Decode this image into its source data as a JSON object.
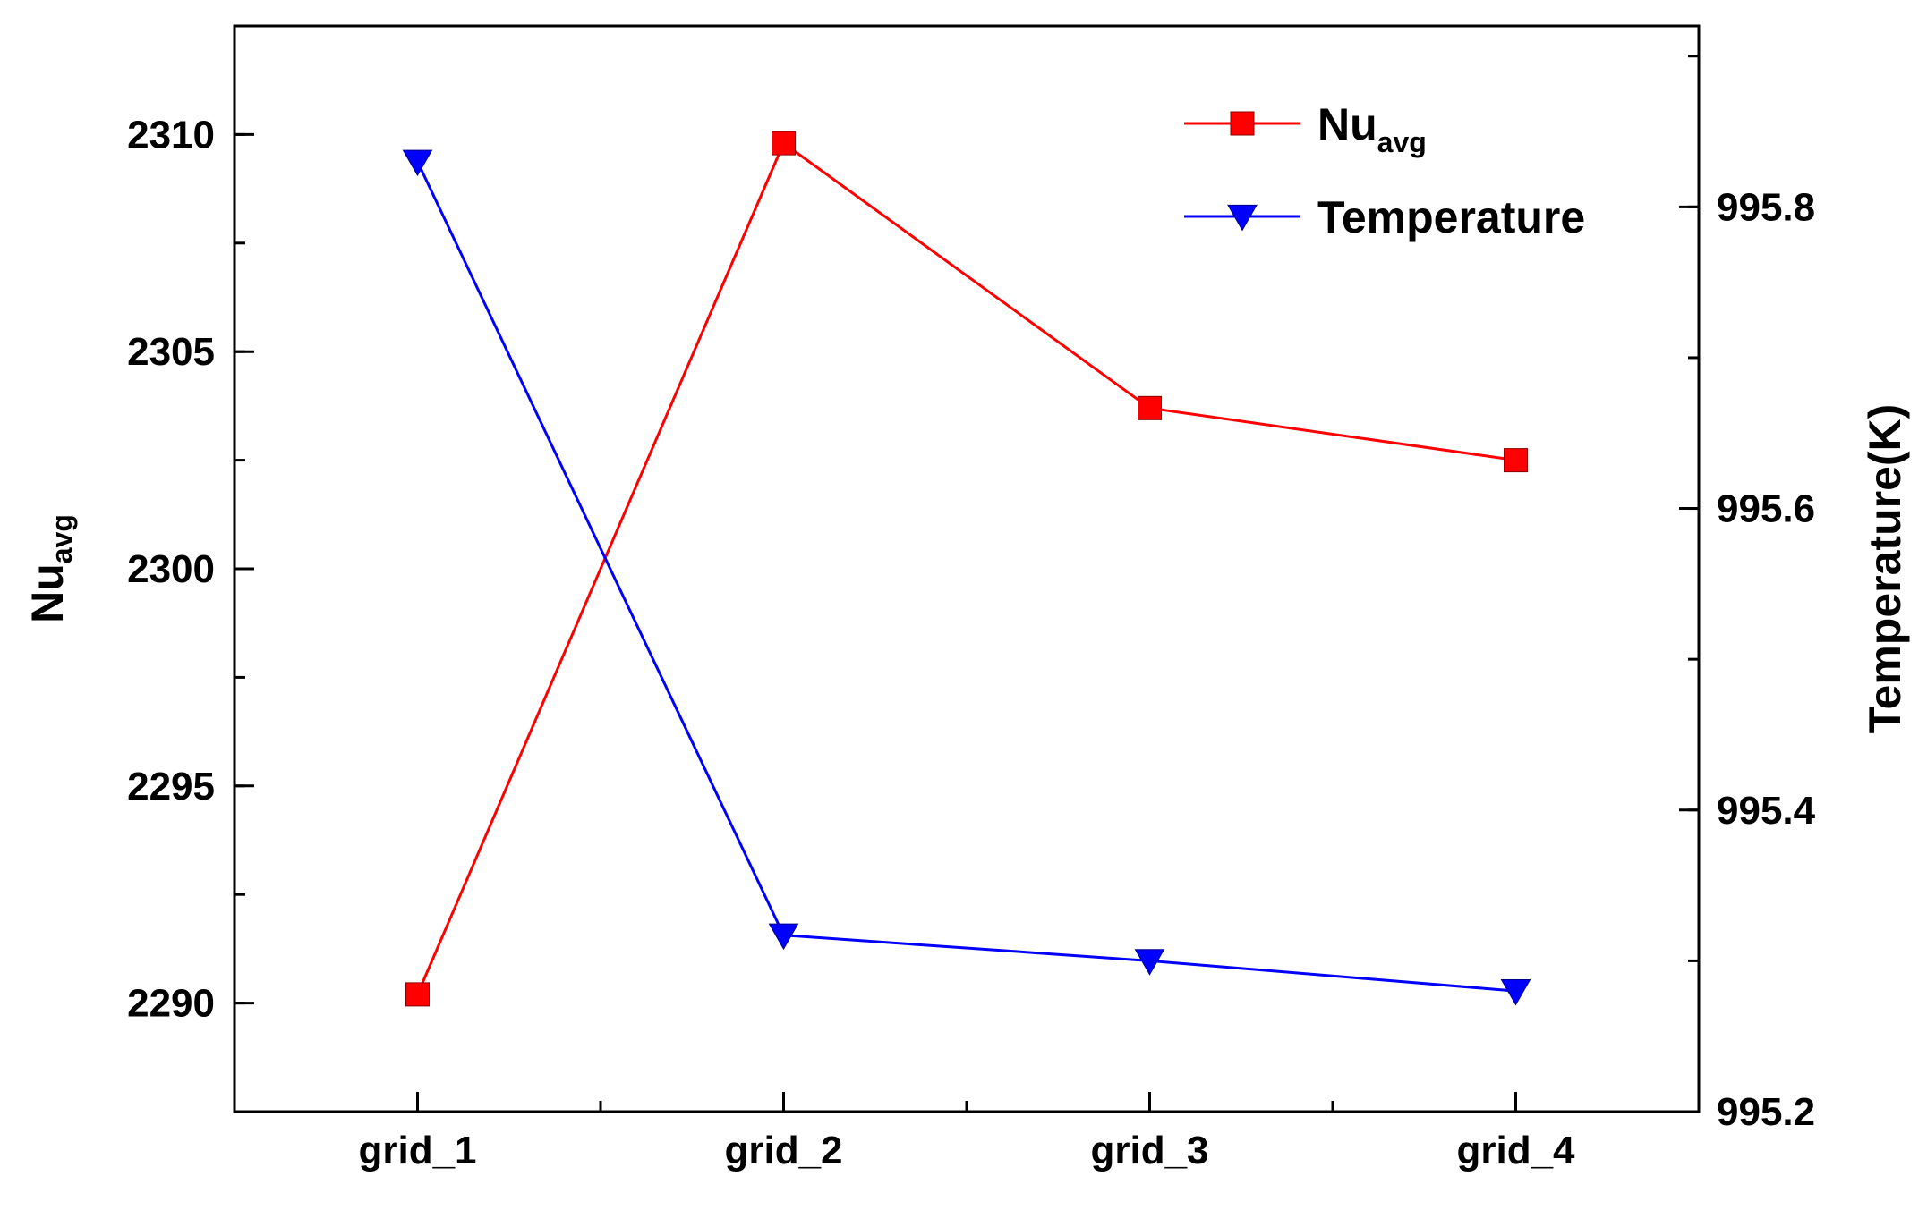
{
  "chart_data": {
    "type": "line",
    "title": "",
    "categories": [
      "grid_1",
      "grid_2",
      "grid_3",
      "grid_4"
    ],
    "xlabel": "",
    "ylabel": {
      "base": "Nu",
      "sub": "avg"
    },
    "y2label": "Temperature(K)",
    "ylim": [
      2287.5,
      2312.5
    ],
    "y_ticks": [
      2290,
      2295,
      2300,
      2305,
      2310
    ],
    "y_tick_labels": [
      "2290",
      "2295",
      "2300",
      "2305",
      "2310"
    ],
    "y_minor_step": 2.5,
    "y2lim": [
      995.2,
      995.92
    ],
    "y2_ticks": [
      995.2,
      995.4,
      995.6,
      995.8
    ],
    "y2_tick_labels": [
      "995.2",
      "995.4",
      "995.6",
      "995.8"
    ],
    "y2_minor_step": 0.1,
    "legend_position": "top-right",
    "grid": false,
    "series": [
      {
        "name": "Nu_avg",
        "legend_base": "Nu",
        "legend_sub": "avg",
        "axis": "left",
        "marker": "square",
        "color": "#ff0000",
        "values": [
          2290.2,
          2309.8,
          2303.7,
          2302.5
        ]
      },
      {
        "name": "Temperature",
        "legend_base": "Temperature",
        "legend_sub": "",
        "axis": "right",
        "marker": "triangle-down",
        "color": "#0000ff",
        "values": [
          995.83,
          995.317,
          995.3,
          995.28
        ]
      }
    ]
  }
}
